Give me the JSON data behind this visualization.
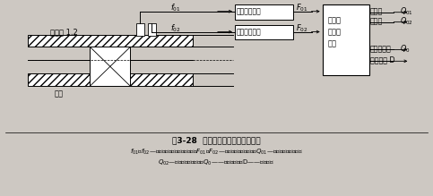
{
  "title": "图3-28  光纤传感器涡轮流量计原理",
  "caption_line1": "$f_{01}$和$f_{02}$—传感器输出的交流频率信号，$F_{01}$和$F_{02}$—调制光输出频率信号，$Q_{01}$—正向流量脉冲信号，",
  "caption_line2": "$Q_{02}$—反向流量脉冲信号，$Q_0$——和流量信号，D——流向状态",
  "bg_color": "#cdc8c2",
  "box_color": "#000000",
  "text_color": "#000000"
}
